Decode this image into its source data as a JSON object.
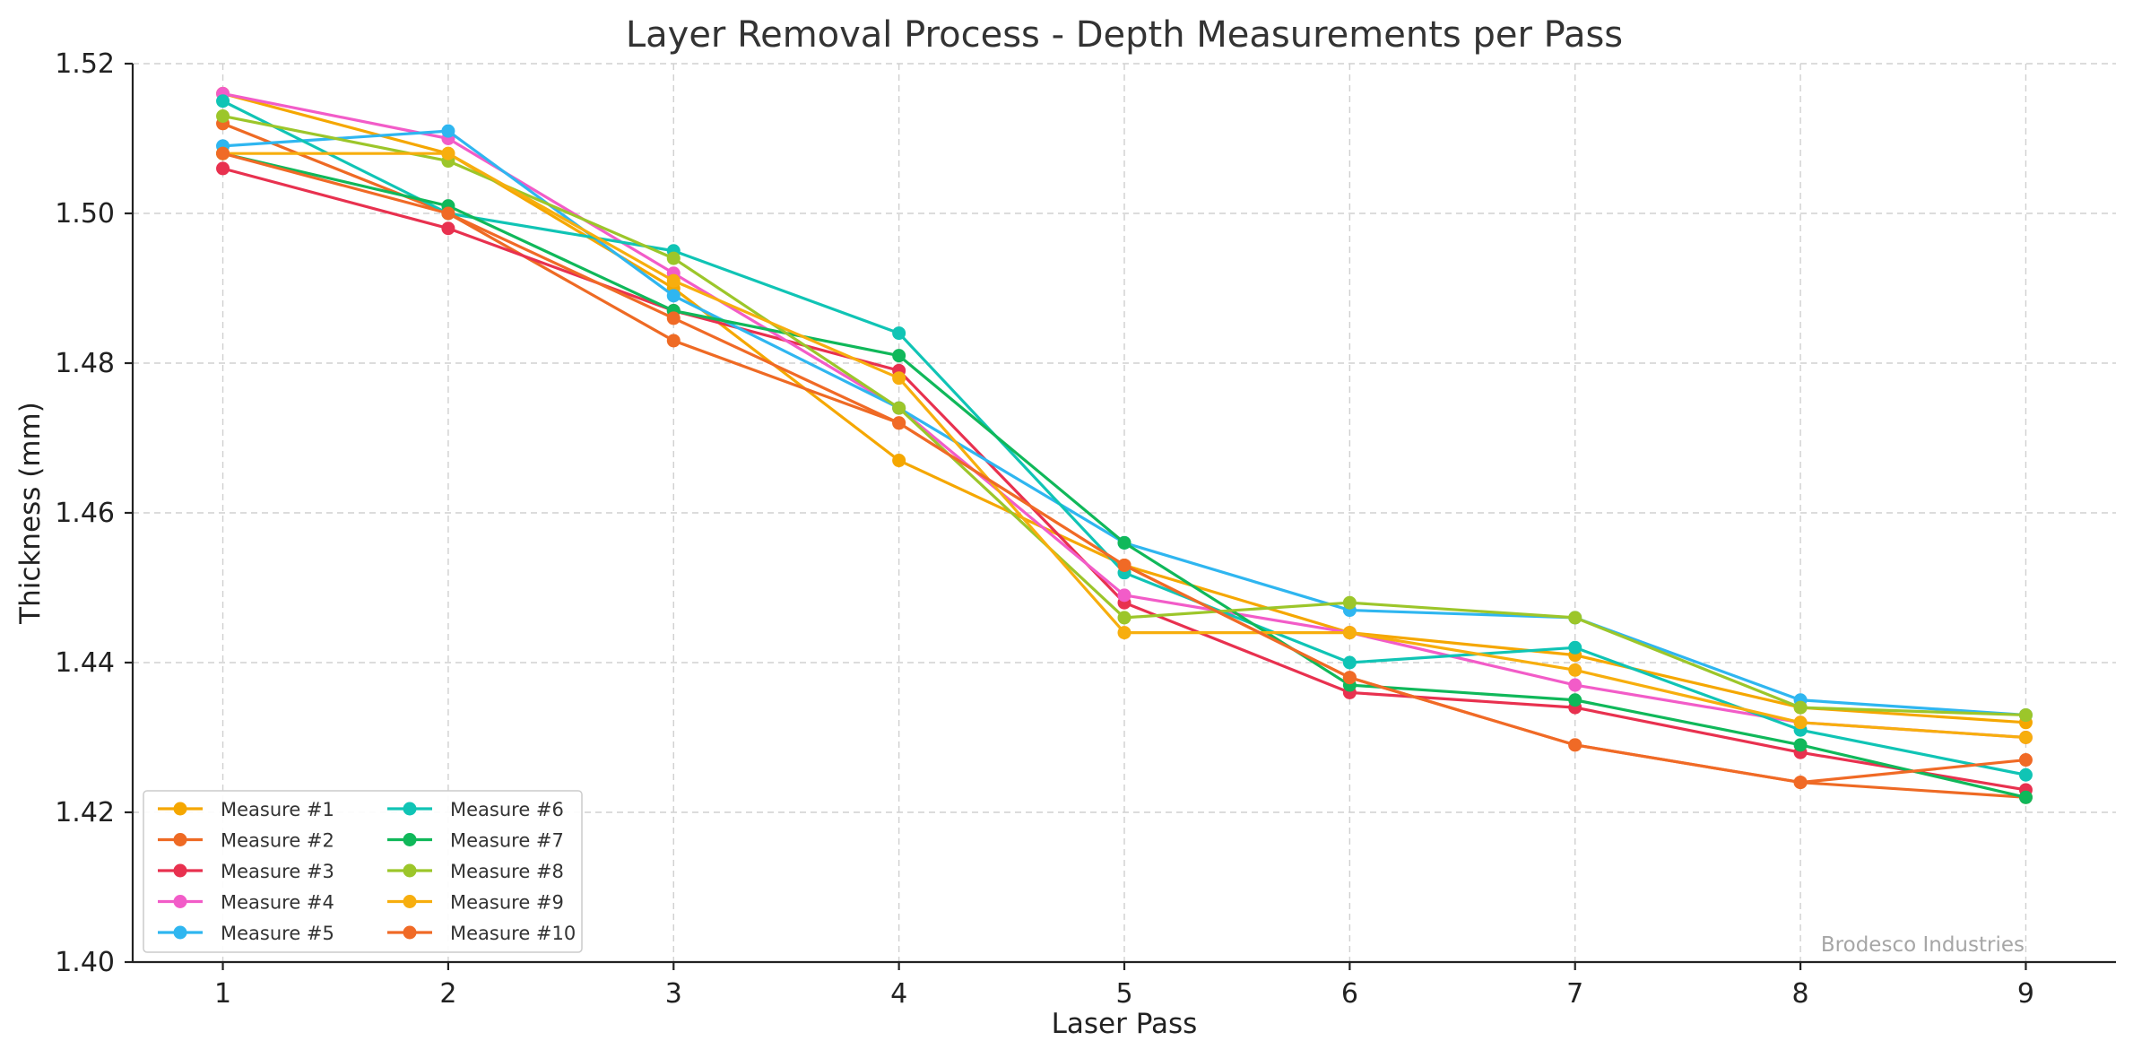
{
  "chart_data": {
    "type": "line",
    "title": "Layer Removal Process - Depth Measurements per Pass",
    "xlabel": "Laser Pass",
    "ylabel": "Thickness (mm)",
    "x": [
      1,
      2,
      3,
      4,
      5,
      6,
      7,
      8,
      9
    ],
    "x_tick_labels": [
      "1",
      "2",
      "3",
      "4",
      "5",
      "6",
      "7",
      "8",
      "9"
    ],
    "xlim": [
      0.6,
      9.4
    ],
    "ylim": [
      1.4,
      1.52
    ],
    "y_ticks": [
      1.4,
      1.42,
      1.44,
      1.46,
      1.48,
      1.5,
      1.52
    ],
    "y_tick_labels": [
      "1.40",
      "1.42",
      "1.44",
      "1.46",
      "1.48",
      "1.50",
      "1.52"
    ],
    "grid": true,
    "legend_placement": "lower-left",
    "legend_columns": 2,
    "series": [
      {
        "name": "Measure #1",
        "color": "#f5a700",
        "values": [
          1.516,
          1.508,
          1.49,
          1.467,
          1.453,
          1.444,
          1.441,
          1.434,
          1.432
        ]
      },
      {
        "name": "Measure #2",
        "color": "#ee6a24",
        "values": [
          1.512,
          1.5,
          1.483,
          1.472,
          1.453,
          1.438,
          1.429,
          1.424,
          1.422
        ]
      },
      {
        "name": "Measure #3",
        "color": "#e8314f",
        "values": [
          1.506,
          1.498,
          1.487,
          1.479,
          1.448,
          1.436,
          1.434,
          1.428,
          1.423
        ]
      },
      {
        "name": "Measure #4",
        "color": "#f25cc8",
        "values": [
          1.516,
          1.51,
          1.492,
          1.474,
          1.449,
          1.444,
          1.437,
          1.432,
          1.43
        ]
      },
      {
        "name": "Measure #5",
        "color": "#2fb6f0",
        "values": [
          1.509,
          1.511,
          1.489,
          1.474,
          1.456,
          1.447,
          1.446,
          1.435,
          1.433
        ]
      },
      {
        "name": "Measure #6",
        "color": "#10c4b5",
        "values": [
          1.515,
          1.5,
          1.495,
          1.484,
          1.452,
          1.44,
          1.442,
          1.431,
          1.425
        ]
      },
      {
        "name": "Measure #7",
        "color": "#10b85a",
        "values": [
          1.508,
          1.501,
          1.487,
          1.481,
          1.456,
          1.437,
          1.435,
          1.429,
          1.422
        ]
      },
      {
        "name": "Measure #8",
        "color": "#9cc62a",
        "values": [
          1.513,
          1.507,
          1.494,
          1.474,
          1.446,
          1.448,
          1.446,
          1.434,
          1.433
        ]
      },
      {
        "name": "Measure #9",
        "color": "#f7ae0e",
        "values": [
          1.508,
          1.508,
          1.491,
          1.478,
          1.444,
          1.444,
          1.439,
          1.432,
          1.43
        ]
      },
      {
        "name": "Measure #10",
        "color": "#f06a26",
        "values": [
          1.508,
          1.5,
          1.486,
          1.472,
          1.453,
          1.438,
          1.429,
          1.424,
          1.427
        ]
      }
    ],
    "watermark": "Brodesco Industries"
  }
}
